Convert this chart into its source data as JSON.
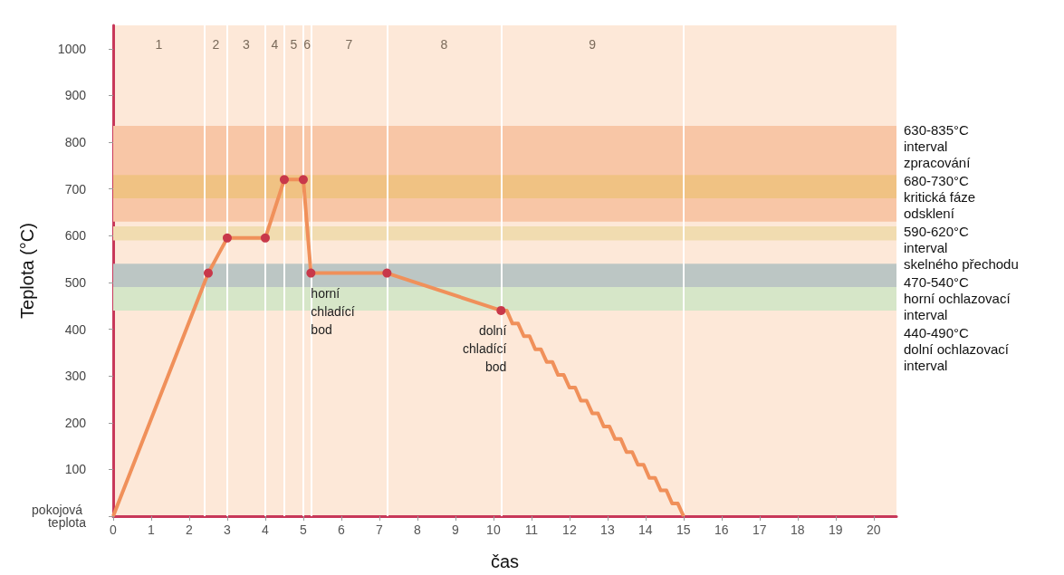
{
  "chart_data": {
    "type": "line",
    "xlabel": "čas",
    "ylabel": "Teplota (°C)",
    "xlim": [
      0,
      20.6
    ],
    "xticks": [
      0,
      1,
      2,
      3,
      4,
      5,
      6,
      7,
      8,
      9,
      10,
      11,
      12,
      13,
      14,
      15,
      16,
      17,
      18,
      19,
      20
    ],
    "ylim": [
      0,
      1050
    ],
    "yticks": [
      {
        "value": 0,
        "label": "pokojová teplota"
      },
      100,
      200,
      300,
      400,
      500,
      600,
      700,
      800,
      900,
      1000
    ],
    "series": [
      {
        "color": "#f0905a",
        "marker": "none",
        "x": [
          0,
          2.5,
          3,
          4,
          4.5,
          5,
          5.2,
          7.2,
          10.2,
          10.35,
          10.5,
          10.65,
          10.8,
          10.95,
          11.1,
          11.25,
          11.4,
          11.55,
          11.7,
          11.85,
          12.0,
          12.15,
          12.3,
          12.45,
          12.6,
          12.75,
          12.9,
          13.05,
          13.2,
          13.35,
          13.5,
          13.65,
          13.8,
          13.95,
          14.1,
          14.25,
          14.4,
          14.55,
          14.7,
          14.85,
          15.0
        ],
        "values": [
          0,
          520,
          595,
          595,
          720,
          720,
          520,
          520,
          440,
          440,
          412,
          412,
          385,
          385,
          357,
          357,
          330,
          330,
          302,
          302,
          275,
          275,
          247,
          247,
          220,
          220,
          192,
          192,
          165,
          165,
          137,
          137,
          110,
          110,
          82,
          82,
          55,
          55,
          27,
          27,
          0
        ]
      },
      {
        "type": "scatter",
        "color": "#c8384a",
        "marker": "circle",
        "x": [
          2.5,
          3,
          4,
          4.5,
          5,
          5.2,
          7.2,
          10.2
        ],
        "values": [
          520,
          595,
          595,
          720,
          720,
          520,
          520,
          440
        ]
      }
    ],
    "bands": [
      {
        "axis": "y",
        "from": 680,
        "to": 730,
        "label": "680-730°C\nkritická fáze\nodsklení",
        "color": "#f0c283"
      },
      {
        "axis": "y",
        "from": 630,
        "to": 835,
        "label": "630-835°C\ninterval\nzpracování",
        "color": "#f8c6a6"
      },
      {
        "axis": "y",
        "from": 590,
        "to": 620,
        "label": "590-620°C\ninterval\nskelného přechodu",
        "color": "#f1dcb0"
      },
      {
        "axis": "y",
        "from": 470,
        "to": 540,
        "label": "470-540°C\nhorní ochlazovací\ninterval",
        "color": "#bcc6c4"
      },
      {
        "axis": "y",
        "from": 440,
        "to": 490,
        "label": "440-490°C\ndolní ochlazovací\ninterval",
        "color": "#d6e6c8"
      }
    ],
    "ref_lines": [
      {
        "axis": "x",
        "value": 2.4,
        "color": "#ffffff"
      },
      {
        "axis": "x",
        "value": 3,
        "color": "#ffffff"
      },
      {
        "axis": "x",
        "value": 4,
        "color": "#ffffff"
      },
      {
        "axis": "x",
        "value": 4.5,
        "color": "#ffffff"
      },
      {
        "axis": "x",
        "value": 5,
        "color": "#ffffff"
      },
      {
        "axis": "x",
        "value": 5.2,
        "color": "#ffffff"
      },
      {
        "axis": "x",
        "value": 7.2,
        "color": "#ffffff"
      },
      {
        "axis": "x",
        "value": 10.2,
        "color": "#ffffff"
      },
      {
        "axis": "x",
        "value": 15,
        "color": "#ffffff"
      }
    ],
    "annotations": [
      "1",
      "2",
      "3",
      "4",
      "5",
      "6",
      "7",
      "8",
      "9",
      {
        "text": "horní\nchladící\nbod",
        "x": 5.2,
        "y": 520
      },
      {
        "text": "dolní\nchladící\nbod",
        "x": 10.2,
        "y": 440
      }
    ]
  }
}
